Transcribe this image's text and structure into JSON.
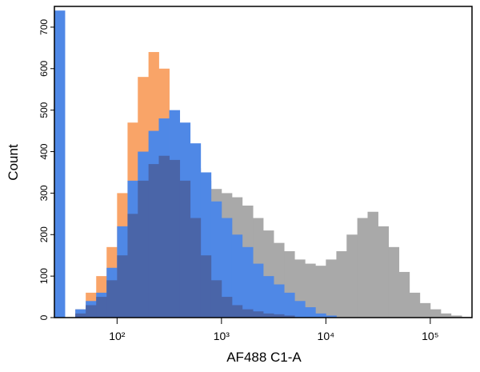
{
  "chart_data": {
    "type": "histogram",
    "x_label": "AF488 C1-A",
    "y_label": "Count",
    "xscale": "log",
    "bins": [
      25.1,
      31.6,
      39.8,
      50.1,
      63.1,
      79.4,
      100,
      126,
      158,
      200,
      251,
      316,
      398,
      501,
      631,
      794,
      1000,
      1260,
      1580,
      2000,
      2510,
      3160,
      3980,
      5010,
      6310,
      7940,
      10000,
      12600,
      15800,
      20000,
      25100,
      31600,
      39800,
      50100,
      63100,
      79400,
      100000,
      126000,
      158000,
      200000,
      251000
    ],
    "series": [
      {
        "color": "#a9a9a9",
        "values": [
          0,
          0,
          10,
          20,
          40,
          80,
          150,
          230,
          300,
          380,
          420,
          430,
          400,
          360,
          330,
          310,
          300,
          290,
          270,
          240,
          210,
          180,
          160,
          140,
          130,
          125,
          140,
          160,
          200,
          240,
          255,
          220,
          170,
          110,
          60,
          35,
          20,
          10,
          5,
          2
        ]
      },
      {
        "color": "#f9a468",
        "values": [
          0,
          0,
          20,
          60,
          100,
          170,
          300,
          470,
          580,
          640,
          600,
          480,
          380,
          250,
          120,
          50,
          20,
          0,
          0,
          0,
          0,
          0,
          0,
          0,
          0,
          0,
          0,
          0,
          0,
          0,
          0,
          0,
          0,
          0,
          0,
          0,
          0,
          0,
          0,
          0
        ]
      },
      {
        "color": "#4f88e6",
        "values": [
          740,
          0,
          20,
          40,
          60,
          120,
          220,
          330,
          400,
          450,
          480,
          500,
          470,
          420,
          350,
          280,
          240,
          200,
          170,
          130,
          100,
          80,
          60,
          40,
          25,
          10,
          5,
          0,
          0,
          0,
          0,
          0,
          0,
          0,
          0,
          0,
          0,
          0,
          0,
          0
        ]
      },
      {
        "color": "#4a65a8",
        "values": [
          0,
          0,
          10,
          30,
          50,
          90,
          150,
          250,
          330,
          370,
          390,
          380,
          330,
          240,
          150,
          90,
          50,
          30,
          20,
          15,
          10,
          8,
          5,
          0,
          0,
          0,
          0,
          0,
          0,
          0,
          0,
          0,
          0,
          0,
          0,
          0,
          0,
          0,
          0,
          0
        ]
      }
    ],
    "xlim": [
      25.1,
      251000
    ],
    "ylim": [
      0,
      750
    ],
    "xticks": [
      {
        "value": 100,
        "label": "10²"
      },
      {
        "value": 1000,
        "label": "10³"
      },
      {
        "value": 10000,
        "label": "10⁴"
      },
      {
        "value": 100000,
        "label": "10⁵"
      }
    ],
    "yticks": [
      0,
      100,
      200,
      300,
      400,
      500,
      600,
      700
    ]
  }
}
